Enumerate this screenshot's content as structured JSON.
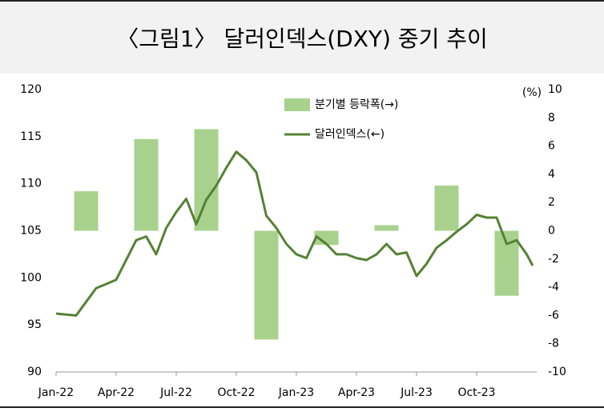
{
  "chart_data": {
    "type": "bar_line",
    "title": "〈그림1〉 달러인덱스(DXY) 중기 추이",
    "y2_label": "(%)",
    "xlim": [
      0,
      24
    ],
    "xticks": [
      {
        "value": 0,
        "label": "Jan-22"
      },
      {
        "value": 3,
        "label": "Apr-22"
      },
      {
        "value": 6,
        "label": "Jul-22"
      },
      {
        "value": 9,
        "label": "Oct-22"
      },
      {
        "value": 12,
        "label": "Jan-23"
      },
      {
        "value": 15,
        "label": "Apr-23"
      },
      {
        "value": 18,
        "label": "Jul-23"
      },
      {
        "value": 21,
        "label": "Oct-23"
      }
    ],
    "ylim": [
      90,
      120
    ],
    "yticks": [
      90,
      95,
      100,
      105,
      110,
      115,
      120
    ],
    "y2lim": [
      -10,
      10
    ],
    "y2ticks": [
      -10,
      -8,
      -6,
      -4,
      -2,
      0,
      2,
      4,
      6,
      8,
      10
    ],
    "series": [
      {
        "name": "분기별 등락폭(→)",
        "color": "#a9d18e",
        "axis": "y2",
        "x": [
          1.5,
          4.5,
          7.5,
          10.5,
          13.5,
          16.5,
          19.5,
          22.5
        ],
        "values": [
          2.8,
          6.5,
          7.2,
          -7.7,
          -1.0,
          0.4,
          3.2,
          -4.6
        ]
      },
      {
        "name": "달러인덱스(←)",
        "color": "#548235",
        "axis": "y",
        "x": [
          0,
          1,
          2,
          3,
          4,
          4.5,
          5,
          5.5,
          6,
          6.5,
          7,
          7.5,
          8,
          8.5,
          9,
          9.5,
          10,
          10.5,
          11,
          11.5,
          12,
          12.5,
          13,
          13.5,
          14,
          14.5,
          15,
          15.5,
          16,
          16.5,
          17,
          17.5,
          18,
          18.5,
          19,
          19.5,
          20,
          20.5,
          21,
          21.5,
          22,
          22.5,
          23,
          23.5,
          23.8
        ],
        "values": [
          96.2,
          96.0,
          98.9,
          99.8,
          104.0,
          104.4,
          102.5,
          105.3,
          107.0,
          108.4,
          105.7,
          108.3,
          109.8,
          111.7,
          113.4,
          112.5,
          111.2,
          106.6,
          105.3,
          103.6,
          102.5,
          102.1,
          104.4,
          103.6,
          102.5,
          102.5,
          102.1,
          101.9,
          102.5,
          103.6,
          102.5,
          102.7,
          100.2,
          101.5,
          103.2,
          104.0,
          104.9,
          105.7,
          106.7,
          106.4,
          106.4,
          103.6,
          104.0,
          102.5,
          101.3
        ]
      }
    ]
  }
}
